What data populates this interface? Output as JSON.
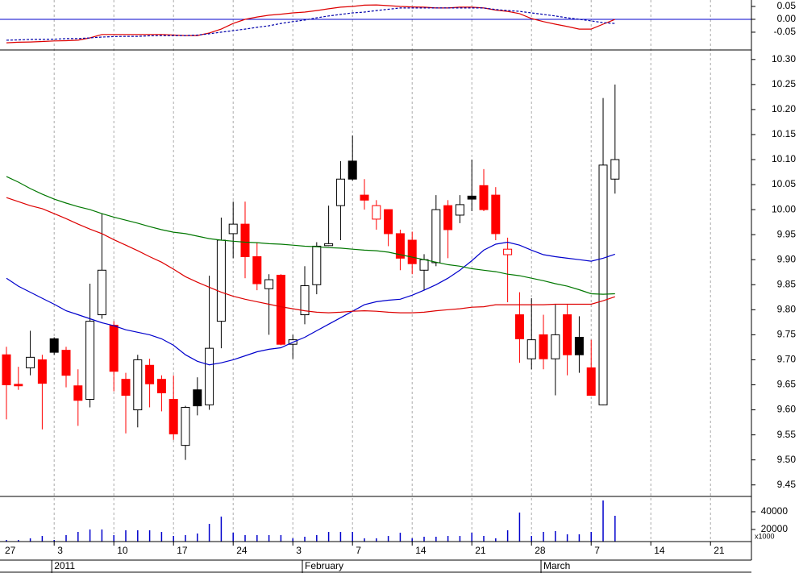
{
  "chart_data": [
    {
      "type": "line",
      "ylim": [
        -0.119,
        0.075
      ],
      "yticks": [
        0.05,
        {
          "value": 0,
          "label": "0.00"
        },
        -0.05
      ],
      "zero_line": true,
      "zero_line_color": "#0000cc",
      "series": [
        {
          "color": "#dd0000",
          "style": "solid",
          "values": [
            -0.091,
            -0.089,
            -0.088,
            -0.086,
            -0.084,
            -0.083,
            -0.081,
            -0.072,
            -0.059,
            -0.059,
            -0.059,
            -0.059,
            -0.059,
            -0.059,
            -0.061,
            -0.063,
            -0.063,
            -0.053,
            -0.038,
            -0.016,
            0.0,
            0.009,
            0.016,
            0.02,
            0.025,
            0.028,
            0.034,
            0.041,
            0.047,
            0.05,
            0.055,
            0.056,
            0.053,
            0.05,
            0.048,
            0.047,
            0.044,
            0.044,
            0.047,
            0.047,
            0.044,
            0.036,
            0.031,
            0.022,
            0.003,
            -0.009,
            -0.019,
            -0.028,
            -0.038,
            -0.038,
            -0.019,
            0.0
          ]
        },
        {
          "color": "#0000aa",
          "style": "dashed",
          "values": [
            -0.081,
            -0.08,
            -0.078,
            -0.078,
            -0.077,
            -0.075,
            -0.075,
            -0.072,
            -0.069,
            -0.067,
            -0.066,
            -0.066,
            -0.064,
            -0.063,
            -0.063,
            -0.063,
            -0.061,
            -0.056,
            -0.05,
            -0.044,
            -0.038,
            -0.031,
            -0.025,
            -0.016,
            -0.009,
            -0.003,
            0.006,
            0.013,
            0.019,
            0.025,
            0.028,
            0.034,
            0.039,
            0.044,
            0.044,
            0.044,
            0.044,
            0.044,
            0.044,
            0.044,
            0.044,
            0.038,
            0.034,
            0.031,
            0.025,
            0.019,
            0.013,
            0.006,
            0.0,
            -0.006,
            -0.013,
            -0.016
          ]
        }
      ]
    },
    {
      "type": "candlestick",
      "ylim": [
        9.427,
        10.319
      ],
      "yticks": [
        9.45,
        {
          "value": 9.5,
          "label": "9.50"
        },
        9.55,
        {
          "value": 9.6,
          "label": "9.60"
        },
        9.65,
        {
          "value": 9.7,
          "label": "9.70"
        },
        9.75,
        {
          "value": 9.8,
          "label": "9.80"
        },
        9.85,
        {
          "value": 9.9,
          "label": "9.90"
        },
        9.95,
        {
          "value": 10,
          "label": "10.00"
        },
        10.05,
        {
          "value": 10.1,
          "label": "10.10"
        },
        10.15,
        {
          "value": 10.2,
          "label": "10.20"
        },
        10.25,
        {
          "value": 10.3,
          "label": "10.30"
        }
      ],
      "open": [
        9.71,
        9.651,
        9.684,
        9.7,
        9.742,
        9.719,
        9.648,
        9.621,
        9.79,
        9.769,
        9.661,
        9.6,
        9.689,
        9.661,
        9.621,
        9.529,
        9.64,
        9.61,
        9.777,
        9.952,
        9.971,
        9.906,
        9.842,
        9.869,
        9.731,
        9.79,
        9.85,
        9.928,
        10.008,
        10.097,
        10.029,
        9.981,
        10.0,
        9.952,
        9.939,
        9.879,
        9.894,
        10.008,
        9.989,
        10.027,
        10.048,
        10.029,
        9.91,
        9.79,
        9.702,
        9.75,
        9.702,
        9.79,
        9.745,
        9.684,
        9.61,
        10.061
      ],
      "high": [
        9.726,
        9.686,
        9.758,
        9.71,
        9.745,
        9.726,
        9.681,
        9.852,
        9.992,
        9.777,
        9.674,
        9.71,
        9.702,
        9.669,
        9.669,
        9.608,
        9.665,
        9.868,
        9.984,
        10.016,
        10.016,
        9.935,
        9.871,
        9.871,
        9.75,
        9.887,
        9.935,
        10.008,
        10.097,
        10.148,
        10.061,
        10.019,
        10.0,
        9.96,
        9.956,
        9.911,
        10.029,
        10.019,
        10.029,
        10.1,
        10.081,
        10.045,
        9.944,
        9.835,
        9.823,
        9.79,
        9.81,
        9.81,
        9.787,
        9.74,
        10.223,
        10.25
      ],
      "low": [
        9.581,
        9.64,
        9.669,
        9.561,
        9.71,
        9.645,
        9.568,
        9.605,
        9.782,
        9.637,
        9.553,
        9.565,
        9.605,
        9.597,
        9.54,
        9.5,
        9.589,
        9.6,
        9.723,
        9.903,
        9.863,
        9.839,
        9.75,
        9.729,
        9.702,
        9.771,
        9.831,
        9.927,
        9.939,
        10.058,
        10.0,
        9.96,
        9.927,
        9.879,
        9.871,
        9.839,
        9.887,
        9.903,
        9.973,
        9.997,
        9.997,
        9.939,
        9.815,
        9.694,
        9.681,
        9.681,
        9.629,
        9.669,
        9.674,
        9.629,
        9.609,
        10.032
      ],
      "close": [
        9.65,
        9.648,
        9.705,
        9.653,
        9.715,
        9.669,
        9.619,
        9.777,
        9.879,
        9.677,
        9.629,
        9.7,
        9.652,
        9.634,
        9.552,
        9.605,
        9.608,
        9.723,
        9.939,
        9.971,
        9.906,
        9.852,
        9.86,
        9.731,
        9.74,
        9.848,
        9.927,
        9.932,
        10.061,
        10.061,
        10.019,
        10.008,
        9.952,
        9.903,
        9.892,
        9.9,
        10.0,
        9.96,
        10.01,
        10.021,
        10.0,
        9.952,
        9.921,
        9.742,
        9.74,
        9.702,
        9.75,
        9.71,
        9.71,
        9.629,
        10.089,
        10.1
      ],
      "fill": [
        "#ff0000",
        "#ff0000",
        "#ffffff",
        "#ff0000",
        "#000000",
        "#ff0000",
        "#ff0000",
        "#ffffff",
        "#ffffff",
        "#ff0000",
        "#ff0000",
        "#ffffff",
        "#ff0000",
        "#ff0000",
        "#ff0000",
        "#ffffff",
        "#000000",
        "#ffffff",
        "#ffffff",
        "#ffffff",
        "#ff0000",
        "#ff0000",
        "#ffffff",
        "#ff0000",
        "#ffffff",
        "#ffffff",
        "#ffffff",
        "#ffffff",
        "#ffffff",
        "#000000",
        "#ff0000",
        "#ffffff",
        "#ff0000",
        "#ff0000",
        "#ff0000",
        "#ffffff",
        "#ffffff",
        "#ff0000",
        "#ffffff",
        "#000000",
        "#ff0000",
        "#ff0000",
        "#ffffff",
        "#ff0000",
        "#ffffff",
        "#ff0000",
        "#ffffff",
        "#ff0000",
        "#000000",
        "#ff0000",
        "#ffffff",
        "#ffffff"
      ],
      "stroke": [
        "#ff0000",
        "#ff0000",
        "#000000",
        "#ff0000",
        "#000000",
        "#ff0000",
        "#ff0000",
        "#000000",
        "#000000",
        "#ff0000",
        "#ff0000",
        "#000000",
        "#ff0000",
        "#ff0000",
        "#ff0000",
        "#000000",
        "#000000",
        "#000000",
        "#000000",
        "#000000",
        "#ff0000",
        "#ff0000",
        "#000000",
        "#ff0000",
        "#000000",
        "#000000",
        "#000000",
        "#000000",
        "#000000",
        "#000000",
        "#ff0000",
        "#ff0000",
        "#ff0000",
        "#ff0000",
        "#ff0000",
        "#000000",
        "#000000",
        "#ff0000",
        "#000000",
        "#000000",
        "#ff0000",
        "#ff0000",
        "#ff0000",
        "#ff0000",
        "#000000",
        "#ff0000",
        "#000000",
        "#ff0000",
        "#000000",
        "#ff0000",
        "#000000",
        "#000000"
      ],
      "series": [
        {
          "color": "#0000cc",
          "values": [
            9.863,
            9.847,
            9.835,
            9.823,
            9.811,
            9.798,
            9.79,
            9.782,
            9.774,
            9.768,
            9.76,
            9.755,
            9.75,
            9.742,
            9.729,
            9.71,
            9.697,
            9.69,
            9.694,
            9.7,
            9.708,
            9.716,
            9.721,
            9.724,
            9.735,
            9.745,
            9.758,
            9.771,
            9.784,
            9.797,
            9.81,
            9.816,
            9.819,
            9.821,
            9.829,
            9.839,
            9.85,
            9.863,
            9.879,
            9.898,
            9.919,
            9.931,
            9.935,
            9.929,
            9.919,
            9.91,
            9.906,
            9.903,
            9.9,
            9.897,
            9.903,
            9.911
          ]
        },
        {
          "color": "#dd0000",
          "values": [
            10.024,
            10.016,
            10.008,
            10.002,
            9.992,
            9.982,
            9.971,
            9.961,
            9.952,
            9.94,
            9.929,
            9.918,
            9.906,
            9.895,
            9.881,
            9.866,
            9.855,
            9.845,
            9.835,
            9.827,
            9.821,
            9.816,
            9.811,
            9.806,
            9.802,
            9.798,
            9.795,
            9.794,
            9.795,
            9.797,
            9.798,
            9.797,
            9.795,
            9.794,
            9.794,
            9.795,
            9.798,
            9.8,
            9.802,
            9.805,
            9.806,
            9.81,
            9.81,
            9.81,
            9.81,
            9.81,
            9.811,
            9.811,
            9.811,
            9.811,
            9.818,
            9.826
          ]
        },
        {
          "color": "#007700",
          "values": [
            10.066,
            10.055,
            10.042,
            10.031,
            10.021,
            10.013,
            10.006,
            10.0,
            9.992,
            9.985,
            9.979,
            9.973,
            9.966,
            9.96,
            9.955,
            9.952,
            9.947,
            9.942,
            9.939,
            9.937,
            9.935,
            9.934,
            9.932,
            9.931,
            9.929,
            9.927,
            9.926,
            9.924,
            9.923,
            9.921,
            9.919,
            9.918,
            9.915,
            9.91,
            9.905,
            9.9,
            9.895,
            9.89,
            9.887,
            9.882,
            9.879,
            9.876,
            9.871,
            9.868,
            9.863,
            9.858,
            9.852,
            9.847,
            9.84,
            9.832,
            9.831,
            9.832
          ]
        }
      ]
    },
    {
      "type": "bar",
      "ylim": [
        6364,
        57273
      ],
      "yticks": [
        40000,
        20000
      ],
      "volume_unit": "x1000",
      "color": "#0000cc",
      "values": [
        8182,
        8182,
        10000,
        12727,
        8182,
        13636,
        17273,
        20000,
        20000,
        13636,
        19091,
        19091,
        19091,
        17273,
        12727,
        13636,
        15455,
        26364,
        34545,
        16364,
        13636,
        13636,
        13636,
        13636,
        10000,
        11818,
        13636,
        17273,
        17273,
        17273,
        10000,
        10000,
        12727,
        16364,
        10000,
        11818,
        11818,
        12727,
        12727,
        16364,
        12727,
        10000,
        19091,
        39091,
        12727,
        17273,
        18182,
        14545,
        14545,
        17273,
        52727,
        35455
      ],
      "xlim": [
        -0.54,
        62.43
      ],
      "xticks": [
        {
          "value": -1,
          "label": "27"
        },
        {
          "value": 4,
          "label": "3"
        },
        {
          "value": 9,
          "label": "10"
        },
        {
          "value": 14,
          "label": "17"
        },
        {
          "value": 19,
          "label": "24"
        },
        {
          "value": 24,
          "label": "3"
        },
        {
          "value": 29,
          "label": "7"
        },
        {
          "value": 34,
          "label": "14"
        },
        {
          "value": 39,
          "label": "21"
        },
        {
          "value": 44,
          "label": "28"
        },
        {
          "value": 49,
          "label": "7"
        },
        {
          "value": 54,
          "label": "14"
        },
        {
          "value": 59,
          "label": "21"
        }
      ],
      "month_ticks": [
        {
          "value": 4,
          "label": "2011"
        },
        {
          "value": 25,
          "label": "February"
        },
        {
          "value": 45,
          "label": "March"
        }
      ]
    }
  ]
}
